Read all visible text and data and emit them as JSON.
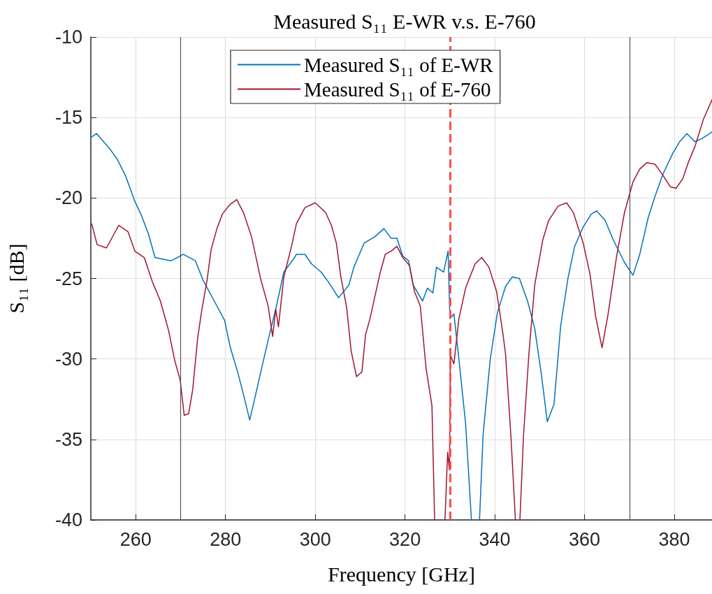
{
  "chart_data": {
    "type": "line",
    "title": "Measured S₁₁ E-WR v.s. E-760",
    "xlabel": "Frequency [GHz]",
    "ylabel": "S₁₁ [dB]",
    "xlim": [
      250,
      388.4
    ],
    "xticks": [
      260,
      280,
      300,
      320,
      340,
      360,
      380
    ],
    "ylim": [
      -40,
      -10
    ],
    "yticks": [
      -40,
      -35,
      -30,
      -25,
      -20,
      -15,
      -10
    ],
    "grid": true,
    "legend": "top",
    "marker": "none",
    "line_style": "solid",
    "ref_lines": [
      {
        "axis": "x",
        "value": 270,
        "label": null,
        "color": "#555555",
        "line_style": "solid"
      },
      {
        "axis": "x",
        "value": 370,
        "label": null,
        "color": "#555555",
        "line_style": "solid"
      },
      {
        "axis": "x",
        "value": 330,
        "label": null,
        "color": "#ff4d4d",
        "line_style": "dashed"
      }
    ],
    "series": [
      {
        "name": "Measured S₁₁ of E-WR",
        "color": "#0072bd",
        "x": [
          250.2,
          251.3,
          254.1,
          255.9,
          257.7,
          259.8,
          261.3,
          262.8,
          264.3,
          267.9,
          270.6,
          273.3,
          275.0,
          277.5,
          279.8,
          281.0,
          282.8,
          284.0,
          285.4,
          286.4,
          288.2,
          289.7,
          291.2,
          293.0,
          295.4,
          295.8,
          297.7,
          299.2,
          301.3,
          302.9,
          305.2,
          307.5,
          308.6,
          310.9,
          313.3,
          315.3,
          316.9,
          318.2,
          319.5,
          320.8,
          321.8,
          323.9,
          325.0,
          326.2,
          327.0,
          328.6,
          329.6,
          330.0,
          330.9,
          332.0,
          333.5,
          334.8,
          335.7,
          336.6,
          337.4,
          339.0,
          340.6,
          342.4,
          343.9,
          345.5,
          347.3,
          348.9,
          350.4,
          351.7,
          353.2,
          354.7,
          356.3,
          357.8,
          359.7,
          361.5,
          362.7,
          364.6,
          366.4,
          368.9,
          370.8,
          372.3,
          374.2,
          375.7,
          377.5,
          379.7,
          381.2,
          382.8,
          384.6,
          386.2,
          388.4
        ],
        "values": [
          -16.2,
          -16.0,
          -16.9,
          -17.6,
          -18.6,
          -20.2,
          -21.1,
          -22.2,
          -23.7,
          -23.9,
          -23.5,
          -23.9,
          -25.1,
          -26.4,
          -27.6,
          -29.2,
          -30.9,
          -32.2,
          -33.8,
          -32.6,
          -30.4,
          -28.6,
          -26.9,
          -24.6,
          -23.7,
          -23.5,
          -23.5,
          -24.1,
          -24.6,
          -25.2,
          -26.2,
          -25.4,
          -24.3,
          -22.8,
          -22.4,
          -21.9,
          -22.5,
          -22.5,
          -23.6,
          -23.9,
          -25.4,
          -26.4,
          -25.6,
          -25.9,
          -24.3,
          -24.6,
          -23.3,
          -27.5,
          -27.2,
          -30.0,
          -34.0,
          -40,
          null,
          -40,
          -34.7,
          -30.0,
          -27.1,
          -25.5,
          -24.9,
          -25.0,
          -26.4,
          -28.1,
          -31.0,
          -33.9,
          -32.8,
          -27.9,
          -25.0,
          -23.0,
          -21.8,
          -21.0,
          -20.8,
          -21.4,
          -22.6,
          -24.0,
          -24.8,
          -23.5,
          -21.2,
          -19.9,
          -18.5,
          -17.2,
          -16.5,
          -16.0,
          -16.5,
          -16.3,
          -15.9
        ]
      },
      {
        "name": "Measured S₁₁ of E-760",
        "color": "#a2142f",
        "x": [
          250.2,
          251.4,
          253.5,
          256.2,
          258.3,
          259.8,
          261.9,
          263.7,
          265.5,
          267.3,
          268.7,
          269.9,
          270.8,
          271.8,
          272.7,
          273.8,
          274.7,
          275.9,
          276.8,
          278.1,
          279.3,
          281.0,
          282.5,
          284.0,
          285.8,
          287.9,
          289.5,
          290.5,
          291.2,
          291.8,
          293.0,
          294.8,
          295.8,
          297.7,
          300.0,
          302.3,
          303.6,
          304.7,
          305.7,
          307.0,
          308.0,
          309.2,
          310.4,
          311.2,
          312.2,
          313.3,
          314.5,
          315.6,
          316.9,
          318.2,
          319.5,
          321.0,
          322.1,
          323.4,
          324.7,
          326.0,
          326.6,
          327.7,
          328.9,
          329.5,
          329.9,
          330.1,
          330.9,
          332.0,
          333.5,
          335.6,
          337.1,
          338.7,
          340.4,
          341.8,
          342.4,
          343.6,
          344.6,
          345.1,
          345.6,
          346.4,
          347.6,
          348.9,
          350.7,
          352.0,
          354.1,
          356.0,
          357.5,
          359.7,
          361.2,
          362.5,
          363.9,
          365.2,
          367.1,
          368.9,
          370.8,
          372.3,
          373.9,
          375.7,
          377.5,
          379.1,
          380.4,
          381.9,
          383.1,
          384.6,
          386.5,
          388.4
        ],
        "values": [
          -21.6,
          -22.9,
          -23.1,
          -21.7,
          -22.1,
          -23.3,
          -23.7,
          -25.2,
          -26.4,
          -28.2,
          -30.1,
          -31.3,
          -33.5,
          -33.4,
          -31.9,
          -28.7,
          -27.0,
          -25.1,
          -23.2,
          -21.9,
          -21.0,
          -20.4,
          -20.1,
          -20.9,
          -22.4,
          -25.1,
          -26.7,
          -28.6,
          -26.9,
          -28.0,
          -24.9,
          -22.9,
          -21.6,
          -20.6,
          -20.3,
          -20.9,
          -21.7,
          -22.8,
          -24.9,
          -26.8,
          -29.5,
          -31.1,
          -30.8,
          -28.5,
          -27.5,
          -26.1,
          -24.6,
          -23.5,
          -23.3,
          -23.0,
          -23.7,
          -24.2,
          -25.8,
          -26.7,
          -30.6,
          -32.9,
          -40,
          null,
          -40,
          -35.8,
          -36.9,
          -29.8,
          -30.3,
          -27.5,
          -25.6,
          -24.1,
          -23.7,
          -24.3,
          -25.8,
          -28.4,
          -29.7,
          -34.8,
          -40,
          null,
          -40,
          -34.8,
          -29.7,
          -25.4,
          -22.6,
          -21.4,
          -20.5,
          -20.3,
          -20.9,
          -22.8,
          -24.7,
          -27.4,
          -29.3,
          -27.3,
          -23.7,
          -20.9,
          -19.0,
          -18.2,
          -17.8,
          -17.9,
          -18.6,
          -19.3,
          -19.4,
          -18.8,
          -17.8,
          -16.8,
          -15.1,
          -13.9
        ]
      }
    ]
  }
}
